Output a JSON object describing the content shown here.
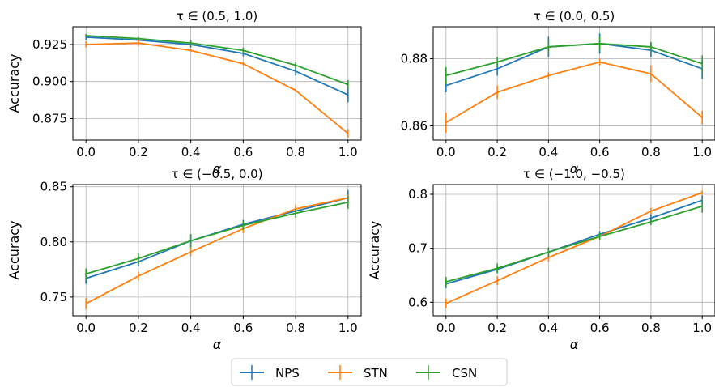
{
  "chart_data": [
    {
      "type": "line",
      "title": "τ ∈ (0.5, 1.0)",
      "xlabel": "α",
      "ylabel": "Accuracy",
      "x": [
        0.0,
        0.2,
        0.4,
        0.6,
        0.8,
        1.0
      ],
      "xlim": [
        -0.05,
        1.05
      ],
      "ylim": [
        0.8605,
        0.937
      ],
      "yticks": [
        0.875,
        0.9,
        0.925
      ],
      "ytick_labels": [
        "0.875",
        "0.900",
        "0.925"
      ],
      "xtick_labels": [
        "0.0",
        "0.2",
        "0.4",
        "0.6",
        "0.8",
        "1.0"
      ],
      "grid": true,
      "series": [
        {
          "name": "NPS",
          "values": [
            0.93,
            0.928,
            0.925,
            0.919,
            0.907,
            0.891
          ],
          "errors": [
            0.002,
            0.002,
            0.002,
            0.002,
            0.003,
            0.005
          ]
        },
        {
          "name": "STN",
          "values": [
            0.925,
            0.926,
            0.921,
            0.912,
            0.894,
            0.865
          ],
          "errors": [
            0.002,
            0.002,
            0.001,
            0.001,
            0.001,
            0.003
          ]
        },
        {
          "name": "CSN",
          "values": [
            0.931,
            0.929,
            0.926,
            0.921,
            0.911,
            0.898
          ],
          "errors": [
            0.001,
            0.001,
            0.002,
            0.002,
            0.002,
            0.003
          ]
        }
      ]
    },
    {
      "type": "line",
      "title": "τ ∈ (0.0, 0.5)",
      "xlabel": "α",
      "ylabel": "",
      "x": [
        0.0,
        0.2,
        0.4,
        0.6,
        0.8,
        1.0
      ],
      "xlim": [
        -0.05,
        1.05
      ],
      "ylim": [
        0.8558,
        0.8895
      ],
      "yticks": [
        0.86,
        0.88
      ],
      "ytick_labels": [
        "0.86",
        "0.88"
      ],
      "xtick_labels": [
        "0.0",
        "0.2",
        "0.4",
        "0.6",
        "0.8",
        "1.0"
      ],
      "grid": true,
      "series": [
        {
          "name": "NPS",
          "values": [
            0.872,
            0.877,
            0.8835,
            0.8845,
            0.8825,
            0.877
          ],
          "errors": [
            0.002,
            0.002,
            0.003,
            0.003,
            0.002,
            0.003
          ]
        },
        {
          "name": "STN",
          "values": [
            0.861,
            0.87,
            0.875,
            0.879,
            0.8755,
            0.8625
          ],
          "errors": [
            0.003,
            0.002,
            0.001,
            0.001,
            0.0025,
            0.002
          ]
        },
        {
          "name": "CSN",
          "values": [
            0.875,
            0.879,
            0.8835,
            0.8845,
            0.8835,
            0.8785
          ],
          "errors": [
            0.0025,
            0.0015,
            0.002,
            0.002,
            0.0015,
            0.0025
          ]
        }
      ]
    },
    {
      "type": "line",
      "title": "τ ∈ (−0.5, 0.0)",
      "xlabel": "α",
      "ylabel": "Accuracy",
      "x": [
        0.0,
        0.2,
        0.4,
        0.6,
        0.8,
        1.0
      ],
      "xlim": [
        -0.05,
        1.05
      ],
      "ylim": [
        0.733,
        0.852
      ],
      "yticks": [
        0.75,
        0.8,
        0.85
      ],
      "ytick_labels": [
        "0.75",
        "0.80",
        "0.85"
      ],
      "xtick_labels": [
        "0.0",
        "0.2",
        "0.4",
        "0.6",
        "0.8",
        "1.0"
      ],
      "grid": true,
      "series": [
        {
          "name": "NPS",
          "values": [
            0.767,
            0.782,
            0.801,
            0.816,
            0.828,
            0.84
          ],
          "errors": [
            0.005,
            0.004,
            0.006,
            0.004,
            0.004,
            0.007
          ]
        },
        {
          "name": "STN",
          "values": [
            0.744,
            0.769,
            0.791,
            0.812,
            0.83,
            0.84
          ],
          "errors": [
            0.005,
            0.004,
            0.004,
            0.004,
            0.004,
            0.003
          ]
        },
        {
          "name": "CSN",
          "values": [
            0.771,
            0.785,
            0.801,
            0.815,
            0.826,
            0.836
          ],
          "errors": [
            0.005,
            0.005,
            0.006,
            0.004,
            0.004,
            0.006
          ]
        }
      ]
    },
    {
      "type": "line",
      "title": "τ ∈ (−1.0, −0.5)",
      "xlabel": "α",
      "ylabel": "Accuracy",
      "x": [
        0.0,
        0.2,
        0.4,
        0.6,
        0.8,
        1.0
      ],
      "xlim": [
        -0.05,
        1.05
      ],
      "ylim": [
        0.575,
        0.818
      ],
      "yticks": [
        0.6,
        0.7,
        0.8
      ],
      "ytick_labels": [
        "0.6",
        "0.7",
        "0.8"
      ],
      "xtick_labels": [
        "0.0",
        "0.2",
        "0.4",
        "0.6",
        "0.8",
        "1.0"
      ],
      "grid": true,
      "series": [
        {
          "name": "NPS",
          "values": [
            0.634,
            0.661,
            0.693,
            0.726,
            0.756,
            0.789
          ],
          "errors": [
            0.008,
            0.007,
            0.008,
            0.006,
            0.007,
            0.009
          ]
        },
        {
          "name": "STN",
          "values": [
            0.598,
            0.64,
            0.683,
            0.722,
            0.769,
            0.803
          ],
          "errors": [
            0.009,
            0.008,
            0.008,
            0.006,
            0.006,
            0.004
          ]
        },
        {
          "name": "CSN",
          "values": [
            0.638,
            0.663,
            0.693,
            0.722,
            0.749,
            0.778
          ],
          "errors": [
            0.009,
            0.009,
            0.009,
            0.006,
            0.006,
            0.012
          ]
        }
      ]
    }
  ],
  "legend": {
    "placement": "bottom-center",
    "items": [
      {
        "label": "NPS",
        "color": "#1f77b4"
      },
      {
        "label": "STN",
        "color": "#ff7f0e"
      },
      {
        "label": "CSN",
        "color": "#2ca02c"
      }
    ]
  },
  "colors": {
    "NPS": "#1f77b4",
    "STN": "#ff7f0e",
    "CSN": "#2ca02c",
    "grid": "#b0b0b0"
  }
}
